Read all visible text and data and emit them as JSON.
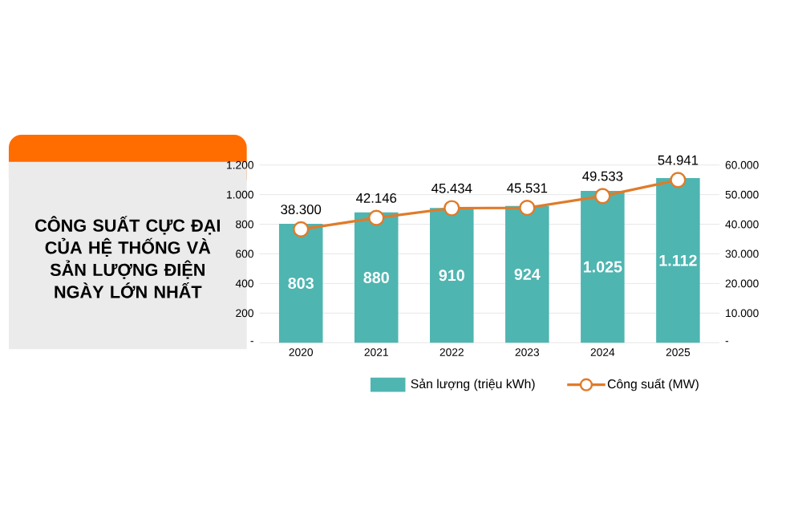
{
  "chart_data": {
    "type": "bar",
    "title": "CÔNG SUẤT CỰC ĐẠI CỦA HỆ THỐNG VÀ SẢN LƯỢNG ĐIỆN NGÀY LỚN NHẤT",
    "categories": [
      "2020",
      "2021",
      "2022",
      "2023",
      "2024",
      "2025"
    ],
    "series": [
      {
        "name": "Sản lượng (triệu kWh)",
        "color": "#4fb5b1",
        "values": [
          803,
          880,
          910,
          924,
          1025,
          1112
        ],
        "value_labels": [
          "803",
          "880",
          "910",
          "924",
          "1.025",
          "1.112"
        ]
      },
      {
        "name": "Công suất (MW)",
        "type": "line",
        "axis": "y2",
        "color": "#e07b2a",
        "marker": "circle",
        "values": [
          38300,
          42146,
          45434,
          45531,
          49533,
          54941
        ],
        "value_labels": [
          "38.300",
          "42.146",
          "45.434",
          "45.531",
          "49.533",
          "54.941"
        ]
      }
    ],
    "ylim": [
      0,
      1200
    ],
    "yticks": [
      {
        "value": 0,
        "label": "-"
      },
      200,
      400,
      600,
      800,
      {
        "value": 1000,
        "label": "1.000"
      },
      {
        "value": 1200,
        "label": "1.200"
      }
    ],
    "y2lim": [
      0,
      60000
    ],
    "y2ticks": [
      {
        "value": 0,
        "label": "-"
      },
      {
        "value": 10000,
        "label": "10.000"
      },
      {
        "value": 20000,
        "label": "20.000"
      },
      {
        "value": 30000,
        "label": "30.000"
      },
      {
        "value": 40000,
        "label": "40.000"
      },
      {
        "value": 50000,
        "label": "50.000"
      },
      {
        "value": 60000,
        "label": "60.000"
      }
    ],
    "grid": "y",
    "legend": "bottom"
  }
}
